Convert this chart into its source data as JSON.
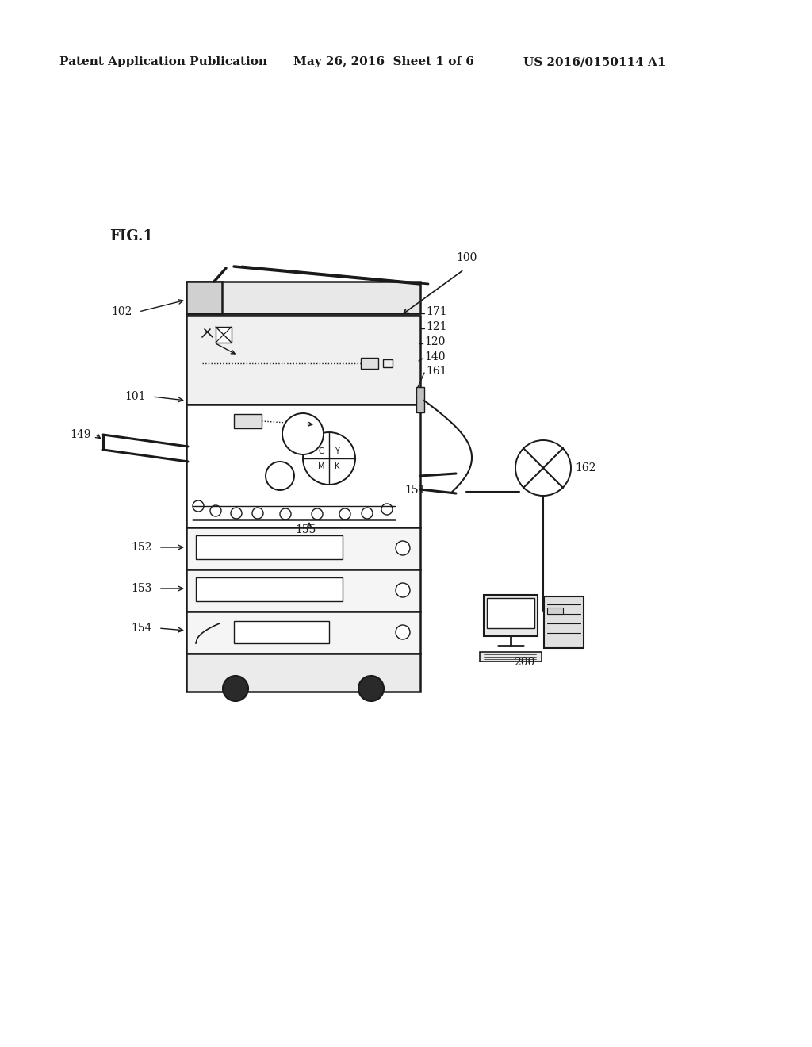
{
  "bg_color": "#ffffff",
  "header_text1": "Patent Application Publication",
  "header_text2": "May 26, 2016  Sheet 1 of 6",
  "header_text3": "US 2016/0150114 A1",
  "fig_label": "FIG.1"
}
